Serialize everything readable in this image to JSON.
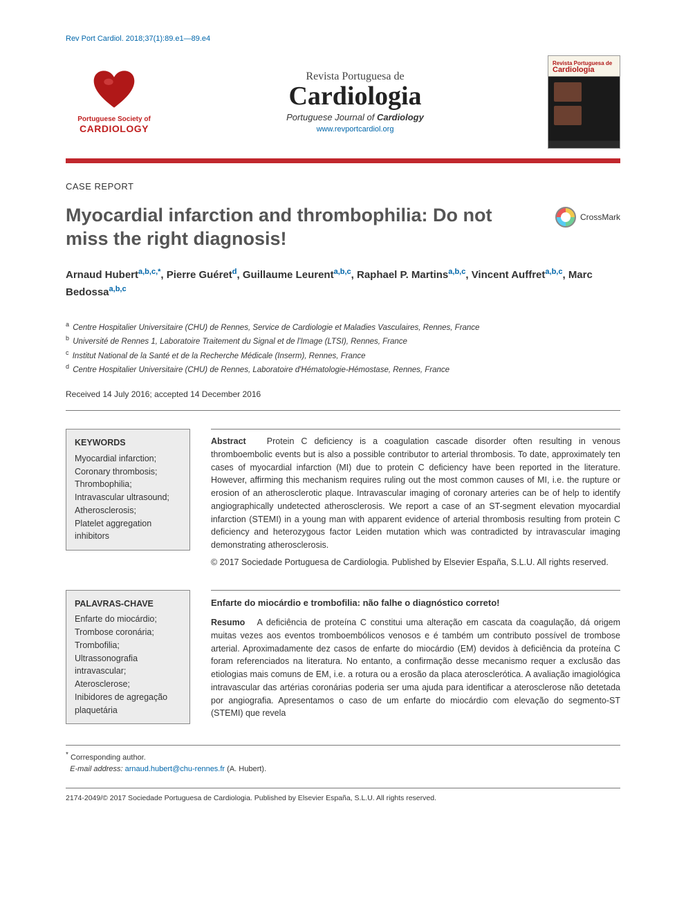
{
  "citation": "Rev Port Cardiol. 2018;37(1):89.e1—89.e4",
  "society": {
    "line1": "Portuguese Society of",
    "line2": "CARDIOLOGY"
  },
  "journal": {
    "pre": "Revista Portuguesa de",
    "main": "Cardiologia",
    "sub_pre": "Portuguese Journal of ",
    "sub_bold": "Cardiology",
    "url": "www.revportcardiol.org"
  },
  "cover": {
    "t1": "Revista Portuguesa de",
    "t2": "Cardiologia"
  },
  "section_label": "CASE REPORT",
  "title": "Myocardial infarction and thrombophilia: Do not miss the right diagnosis!",
  "crossmark_label": "CrossMark",
  "authors": [
    {
      "name": "Arnaud Hubert",
      "affs": "a,b,c,",
      "star": "*"
    },
    {
      "name": "Pierre Guéret",
      "affs": "d"
    },
    {
      "name": "Guillaume Leurent",
      "affs": "a,b,c"
    },
    {
      "name": "Raphael P. Martins",
      "affs": "a,b,c"
    },
    {
      "name": "Vincent Auffret",
      "affs": "a,b,c"
    },
    {
      "name": "Marc Bedossa",
      "affs": "a,b,c"
    }
  ],
  "affiliations": [
    {
      "tag": "a",
      "text": "Centre Hospitalier Universitaire (CHU) de Rennes, Service de Cardiologie et Maladies Vasculaires, Rennes, France"
    },
    {
      "tag": "b",
      "text": "Université de Rennes 1, Laboratoire Traitement du Signal et de l'Image (LTSI), Rennes, France"
    },
    {
      "tag": "c",
      "text": "Institut National de la Santé et de la Recherche Médicale (Inserm), Rennes, France"
    },
    {
      "tag": "d",
      "text": "Centre Hospitalier Universitaire (CHU) de Rennes, Laboratoire d'Hématologie-Hémostase, Rennes, France"
    }
  ],
  "dates": "Received 14 July 2016; accepted 14 December 2016",
  "keywords_en": {
    "head": "KEYWORDS",
    "items": [
      "Myocardial infarction;",
      "Coronary thrombosis;",
      "Thrombophilia;",
      "Intravascular ultrasound;",
      "Atherosclerosis;",
      "Platelet aggregation inhibitors"
    ]
  },
  "abstract_en": {
    "head": "Abstract",
    "body": "Protein C deficiency is a coagulation cascade disorder often resulting in venous thromboembolic events but is also a possible contributor to arterial thrombosis. To date, approximately ten cases of myocardial infarction (MI) due to protein C deficiency have been reported in the literature. However, affirming this mechanism requires ruling out the most common causes of MI, i.e. the rupture or erosion of an atherosclerotic plaque. Intravascular imaging of coronary arteries can be of help to identify angiographically undetected atherosclerosis. We report a case of an ST-segment elevation myocardial infarction (STEMI) in a young man with apparent evidence of arterial thrombosis resulting from protein C deficiency and heterozygous factor Leiden mutation which was contradicted by intravascular imaging demonstrating atherosclerosis.",
    "copyright": "© 2017 Sociedade Portuguesa de Cardiologia. Published by Elsevier España, S.L.U. All rights reserved."
  },
  "keywords_pt": {
    "head": "PALAVRAS-CHAVE",
    "items": [
      "Enfarte do miocárdio;",
      "Trombose coronária;",
      "Trombofilia;",
      "Ultrassonografia intravascular;",
      "Aterosclerose;",
      "Inibidores de agregação plaquetária"
    ]
  },
  "abstract_pt": {
    "title": "Enfarte do miocárdio e trombofilia: não falhe o diagnóstico correto!",
    "head": "Resumo",
    "body": "A deficiência de proteína C constitui uma alteração em cascata da coagulação, dá origem muitas vezes aos eventos tromboembólicos venosos e é também um contributo possível de trombose arterial. Aproximadamente dez casos de enfarte do miocárdio (EM) devidos à deficiência da proteína C foram referenciados na literatura. No entanto, a confirmação desse mecanismo requer a exclusão das etiologias mais comuns de EM, i.e. a rotura ou a erosão da placa aterosclerótica. A avaliação imagiológica intravascular das artérias coronárias poderia ser uma ajuda para identificar a aterosclerose não detetada por angiografia. Apresentamos o caso de um enfarte do miocárdio com elevação do segmento-ST (STEMI) que revela"
  },
  "corr": {
    "label": "Corresponding author.",
    "email_label": "E-mail address:",
    "email": "arnaud.hubert@chu-rennes.fr",
    "name": "(A. Hubert)."
  },
  "issn": "2174-2049/© 2017 Sociedade Portuguesa de Cardiologia. Published by Elsevier España, S.L.U. All rights reserved.",
  "colors": {
    "link": "#0066aa",
    "redbar": "#c1272d",
    "brand_red": "#c02020"
  }
}
